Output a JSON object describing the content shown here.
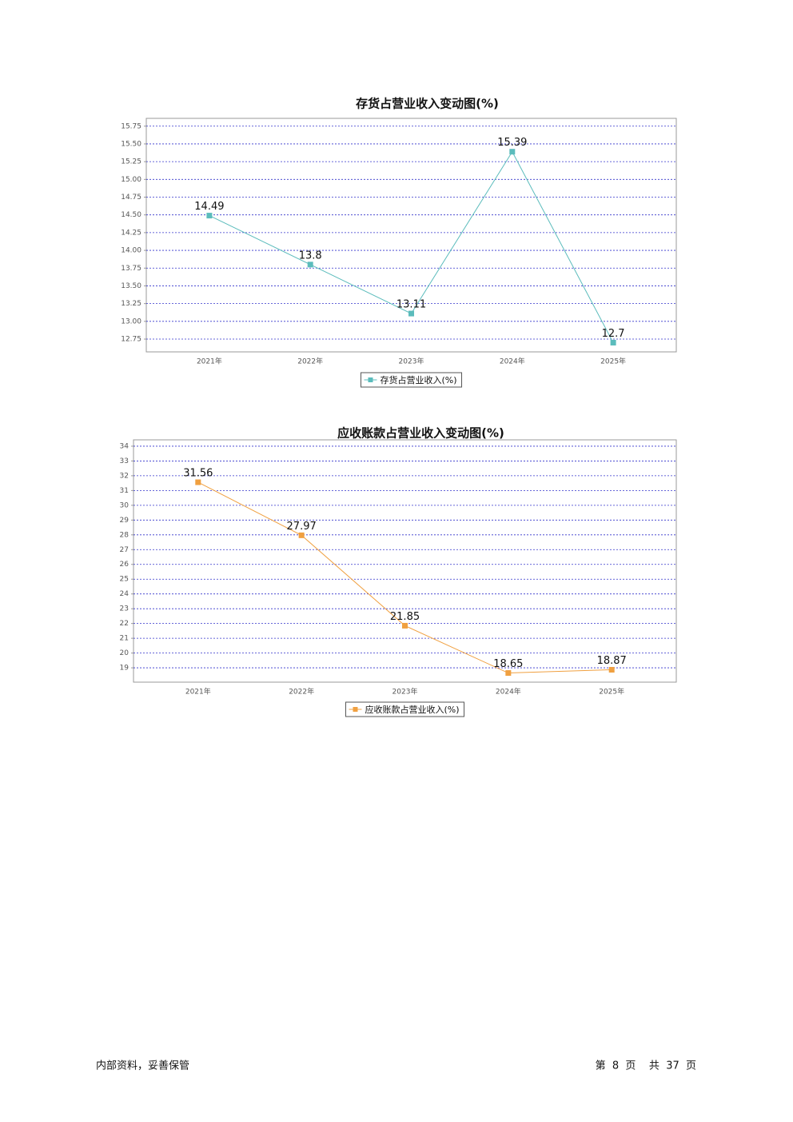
{
  "chart_data": [
    {
      "type": "line",
      "title": "存货占营业收入变动图(%)",
      "categories": [
        "2021年",
        "2022年",
        "2023年",
        "2024年",
        "2025年"
      ],
      "series": [
        {
          "name": "存货占营业收入(%)",
          "color": "#5bbcbc",
          "values": [
            14.49,
            13.8,
            13.11,
            15.39,
            12.7
          ]
        }
      ],
      "ylim": [
        12.57,
        15.86
      ],
      "yticks": [
        12.75,
        {
          "value": 13,
          "label": "13.00"
        },
        13.25,
        {
          "value": 13.5,
          "label": "13.50"
        },
        13.75,
        {
          "value": 14,
          "label": "14.00"
        },
        14.25,
        {
          "value": 14.5,
          "label": "14.50"
        },
        14.75,
        {
          "value": 15,
          "label": "15.00"
        },
        15.25,
        {
          "value": 15.5,
          "label": "15.50"
        },
        15.75
      ],
      "grid": true,
      "legend": "bottom"
    },
    {
      "type": "line",
      "title": "应收账款占营业收入变动图(%)",
      "categories": [
        "2021年",
        "2022年",
        "2023年",
        "2024年",
        "2025年"
      ],
      "series": [
        {
          "name": "应收账款占营业收入(%)",
          "color": "#f0a040",
          "values": [
            31.56,
            27.97,
            21.85,
            18.65,
            18.87
          ]
        }
      ],
      "ylim": [
        18.03,
        34.43
      ],
      "yticks": [
        19,
        20,
        21,
        22,
        23,
        24,
        25,
        26,
        27,
        28,
        29,
        30,
        31,
        32,
        33,
        34
      ],
      "grid": true,
      "legend": "bottom"
    }
  ],
  "footer": {
    "left": "内部资料，妥善保管",
    "right": "第  8  页    共  37  页"
  }
}
